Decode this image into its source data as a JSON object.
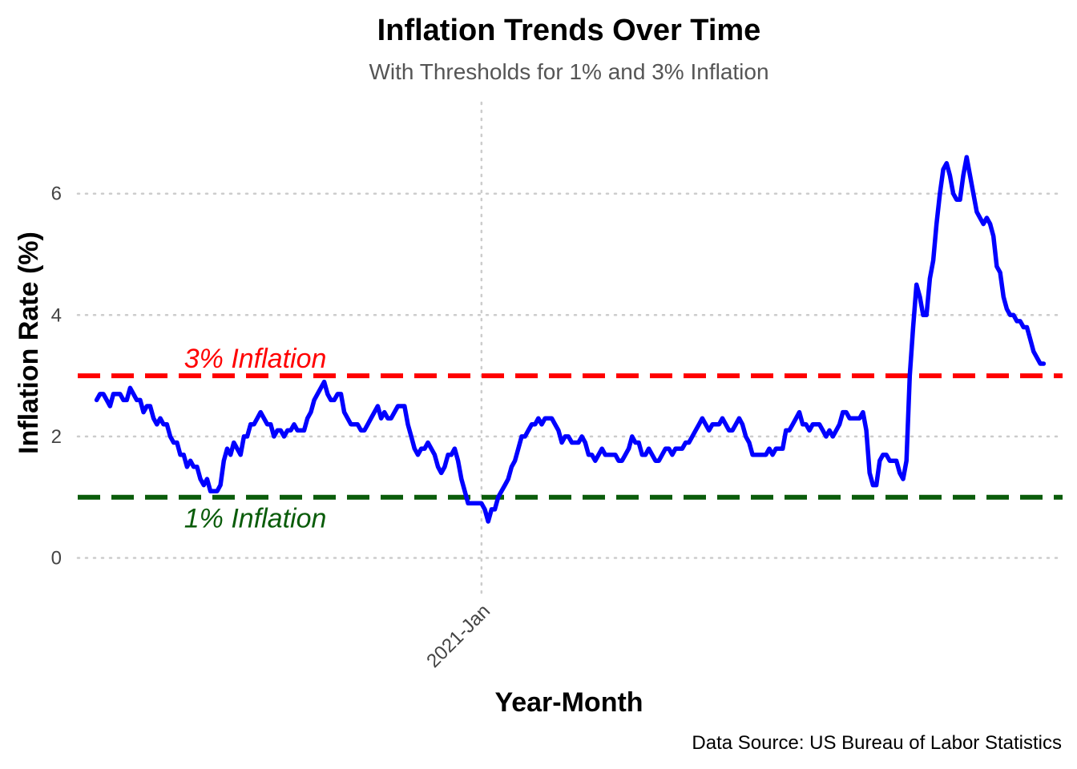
{
  "chart_data": {
    "type": "line",
    "title": "Inflation Trends Over Time",
    "subtitle": "With Thresholds for 1% and 3% Inflation",
    "xlabel": "Year-Month",
    "ylabel": "Inflation Rate (%)",
    "caption": "Data Source: US Bureau of Labor Statistics",
    "x_start": "2011-Jun",
    "x_end": "2024-Aug",
    "x_ticks": [
      {
        "value": 115,
        "label": "2021-Jan"
      }
    ],
    "ylim": [
      -0.6,
      7.5
    ],
    "y_ticks": [
      0,
      2,
      4,
      6
    ],
    "grid": true,
    "legend": "none",
    "series": [
      {
        "color": "#0000ff",
        "values": [
          2.6,
          2.7,
          2.7,
          2.6,
          2.5,
          2.7,
          2.7,
          2.7,
          2.6,
          2.6,
          2.8,
          2.7,
          2.6,
          2.6,
          2.4,
          2.5,
          2.5,
          2.3,
          2.2,
          2.3,
          2.2,
          2.2,
          2.0,
          1.9,
          1.9,
          1.7,
          1.7,
          1.5,
          1.6,
          1.5,
          1.5,
          1.3,
          1.2,
          1.3,
          1.1,
          1.1,
          1.1,
          1.2,
          1.6,
          1.8,
          1.7,
          1.9,
          1.8,
          1.7,
          2.0,
          2.0,
          2.2,
          2.2,
          2.3,
          2.4,
          2.3,
          2.2,
          2.2,
          2.0,
          2.1,
          2.1,
          2.0,
          2.1,
          2.1,
          2.2,
          2.1,
          2.1,
          2.1,
          2.3,
          2.4,
          2.6,
          2.7,
          2.8,
          2.9,
          2.7,
          2.6,
          2.6,
          2.7,
          2.7,
          2.4,
          2.3,
          2.2,
          2.2,
          2.2,
          2.1,
          2.1,
          2.2,
          2.3,
          2.4,
          2.5,
          2.3,
          2.4,
          2.3,
          2.3,
          2.4,
          2.5,
          2.5,
          2.5,
          2.2,
          2.0,
          1.8,
          1.7,
          1.8,
          1.8,
          1.9,
          1.8,
          1.7,
          1.5,
          1.4,
          1.5,
          1.7,
          1.7,
          1.8,
          1.6,
          1.3,
          1.1,
          0.9,
          0.9,
          0.9,
          0.9,
          0.9,
          0.8,
          0.6,
          0.8,
          0.8,
          1.0,
          1.1,
          1.2,
          1.3,
          1.5,
          1.6,
          1.8,
          2.0,
          2.0,
          2.1,
          2.2,
          2.2,
          2.3,
          2.2,
          2.3,
          2.3,
          2.3,
          2.2,
          2.1,
          1.9,
          2.0,
          2.0,
          1.9,
          1.9,
          1.9,
          2.0,
          1.9,
          1.7,
          1.7,
          1.6,
          1.7,
          1.8,
          1.7,
          1.7,
          1.7,
          1.7,
          1.6,
          1.6,
          1.7,
          1.8,
          2.0,
          1.9,
          1.9,
          1.7,
          1.7,
          1.8,
          1.7,
          1.6,
          1.6,
          1.7,
          1.8,
          1.8,
          1.7,
          1.8,
          1.8,
          1.8,
          1.9,
          1.9,
          2.0,
          2.1,
          2.2,
          2.3,
          2.2,
          2.1,
          2.2,
          2.2,
          2.2,
          2.3,
          2.2,
          2.1,
          2.1,
          2.2,
          2.3,
          2.2,
          2.0,
          1.9,
          1.7,
          1.7,
          1.7,
          1.7,
          1.7,
          1.8,
          1.7,
          1.8,
          1.8,
          1.8,
          2.1,
          2.1,
          2.2,
          2.3,
          2.4,
          2.2,
          2.2,
          2.1,
          2.2,
          2.2,
          2.2,
          2.1,
          2.0,
          2.1,
          2.0,
          2.1,
          2.2,
          2.4,
          2.4,
          2.3,
          2.3,
          2.3,
          2.3,
          2.4,
          2.1,
          1.4,
          1.2,
          1.2,
          1.6,
          1.7,
          1.7,
          1.6,
          1.6,
          1.6,
          1.4,
          1.3,
          1.6,
          3.0,
          3.8,
          4.5,
          4.3,
          4.0,
          4.0,
          4.6,
          4.9,
          5.5,
          6.0,
          6.4,
          6.5,
          6.3,
          6.0,
          5.9,
          5.9,
          6.3,
          6.6,
          6.3,
          6.0,
          5.7,
          5.6,
          5.5,
          5.6,
          5.5,
          5.3,
          4.8,
          4.7,
          4.3,
          4.1,
          4.0,
          4.0,
          3.9,
          3.9,
          3.8,
          3.8,
          3.6,
          3.4,
          3.3,
          3.2,
          3.2
        ]
      }
    ],
    "reference_lines": [
      {
        "value": 3,
        "label": "3% Inflation",
        "color": "#ff0000",
        "label_position": "above"
      },
      {
        "value": 1,
        "label": "1% Inflation",
        "color": "#0a5c0a",
        "label_position": "below"
      }
    ]
  }
}
